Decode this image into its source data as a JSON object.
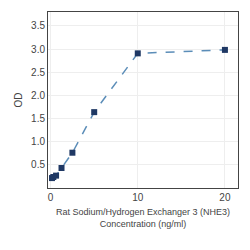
{
  "chart_data": {
    "type": "line",
    "x": [
      0.156,
      0.313,
      0.625,
      1.25,
      2.5,
      5,
      10,
      20
    ],
    "series": [
      {
        "name": "OD",
        "color": "#5B8DB8",
        "colors": [
          "#1F3864",
          "#1F3864",
          "#1F3864",
          "#1F3864",
          "#1F3864",
          "#1F3864",
          "#1F3864",
          "#1F3864"
        ],
        "marker": "square",
        "line_style": "dashed",
        "values": [
          0.214,
          0.238,
          0.267,
          0.432,
          0.762,
          1.638,
          2.907,
          2.982
        ]
      }
    ],
    "xlabel": "Rat Sodium/Hydrogen Exchanger 3 (NHE3)\nConcentration (ng/ml)",
    "ylabel": "OD",
    "xlim": [
      -0.3,
      21.5
    ],
    "ylim": [
      0.0,
      3.8
    ],
    "xticks": [
      0,
      10,
      20
    ],
    "yticks": [
      0.5,
      {
        "value": 1.0,
        "label": "1.0"
      },
      1.5,
      {
        "value": 2.0,
        "label": "2.0"
      },
      2.5,
      {
        "value": 3.0,
        "label": "3.0"
      },
      3.5
    ],
    "grid": true
  }
}
